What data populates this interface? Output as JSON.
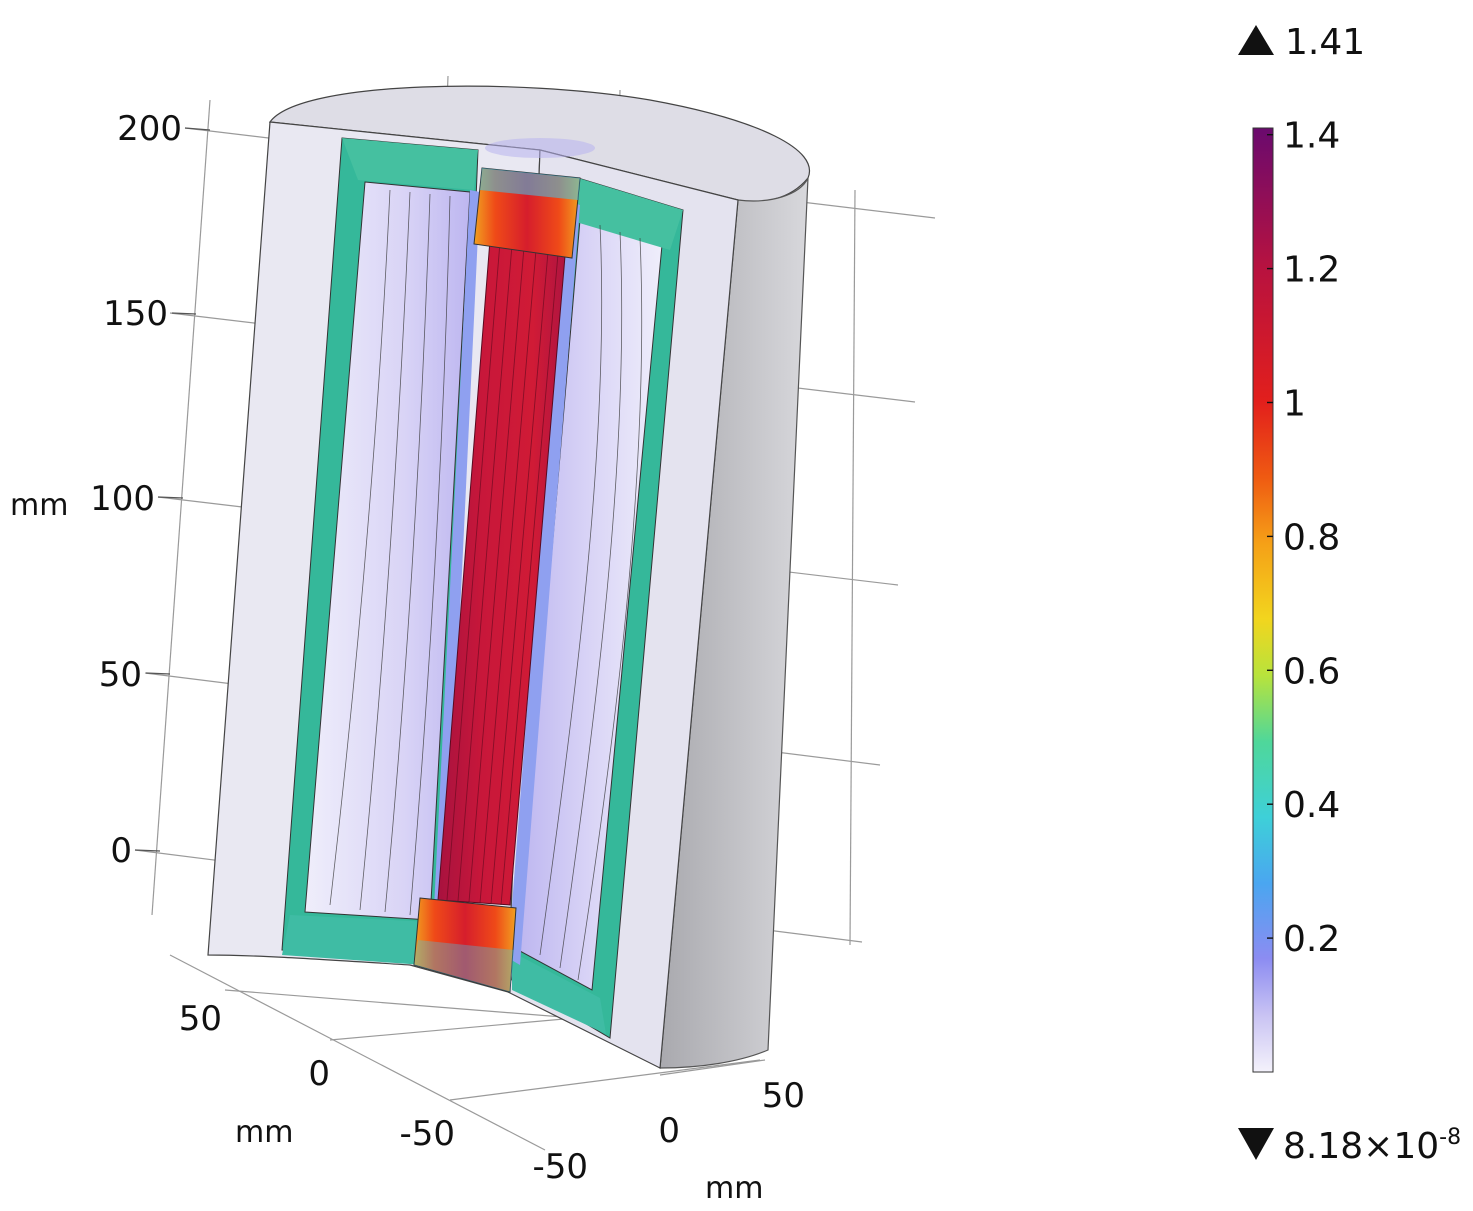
{
  "axes": {
    "z_ticks": [
      "200",
      "150",
      "100",
      "50",
      "0"
    ],
    "z_unit": "mm",
    "x_ticks": [
      "50",
      "0",
      "-50"
    ],
    "x_unit": "mm",
    "y_ticks": [
      "-50",
      "0",
      "50"
    ],
    "y_unit": "mm"
  },
  "colorbar": {
    "max_marker": "1.41",
    "min_marker_mantissa": "8.18×10",
    "min_marker_exponent": "-8",
    "ticks": [
      "1.4",
      "1.2",
      "1",
      "0.8",
      "0.6",
      "0.4",
      "0.2"
    ],
    "tick_values": [
      1.4,
      1.2,
      1.0,
      0.8,
      0.6,
      0.4,
      0.2
    ],
    "range": [
      8.18e-08,
      1.41
    ],
    "colormap": [
      "#f4f2fb",
      "#8c8cf2",
      "#3ec8ef",
      "#3fd4a0",
      "#cfe83a",
      "#f5a017",
      "#ee3b10",
      "#c8102e",
      "#a0144a",
      "#6a0a6e"
    ]
  },
  "colors": {
    "housing": "#e7e6f1",
    "housing_side": "#c4c4c8",
    "yoke": "#35b89a",
    "core": "#c0163a",
    "gap": "#93a2f0"
  }
}
